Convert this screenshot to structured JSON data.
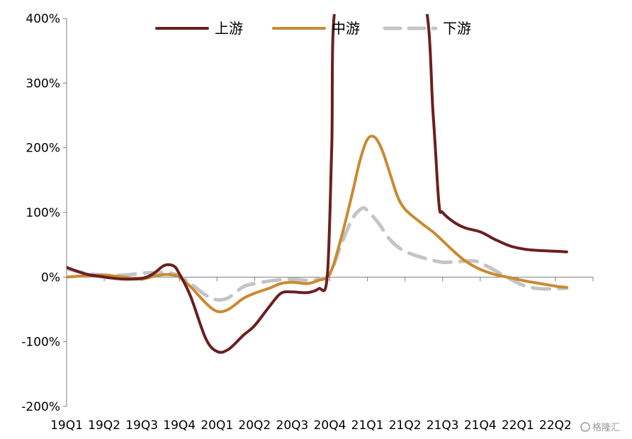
{
  "chart_data": {
    "type": "line",
    "title": "",
    "xlabel": "",
    "ylabel": "",
    "categories": [
      "19Q1",
      "19Q2",
      "19Q3",
      "19Q4",
      "20Q1",
      "20Q2",
      "20Q3",
      "20Q4",
      "21Q1",
      "21Q2",
      "21Q3",
      "21Q4",
      "22Q1",
      "22Q2"
    ],
    "ylim": [
      -200,
      400
    ],
    "yticks": [
      -200,
      -100,
      0,
      100,
      200,
      300,
      400
    ],
    "ytick_labels": [
      "-200%",
      "-100%",
      "0%",
      "100%",
      "200%",
      "300%",
      "400%"
    ],
    "legend_position": "top",
    "grid": false,
    "series": [
      {
        "name": "上游",
        "color": "#6b1f1f",
        "dash": "solid",
        "points": [
          [
            0,
            15
          ],
          [
            0.5,
            5
          ],
          [
            1,
            0
          ],
          [
            1.5,
            -3
          ],
          [
            2,
            -2
          ],
          [
            2.3,
            5
          ],
          [
            2.6,
            18
          ],
          [
            2.85,
            17
          ],
          [
            3,
            5
          ],
          [
            3.3,
            -30
          ],
          [
            3.7,
            -95
          ],
          [
            4,
            -115
          ],
          [
            4.3,
            -112
          ],
          [
            4.7,
            -90
          ],
          [
            5,
            -75
          ],
          [
            5.4,
            -45
          ],
          [
            5.7,
            -25
          ],
          [
            6,
            -23
          ],
          [
            6.4,
            -24
          ],
          [
            6.7,
            -18
          ],
          [
            6.93,
            0
          ],
          [
            7.05,
            200
          ],
          [
            7.15,
            420
          ],
          [
            7.8,
            440
          ],
          [
            8.6,
            440
          ],
          [
            9.5,
            430
          ],
          [
            9.75,
            250
          ],
          [
            9.9,
            115
          ],
          [
            10,
            100
          ],
          [
            10.3,
            85
          ],
          [
            10.6,
            76
          ],
          [
            11,
            70
          ],
          [
            11.4,
            58
          ],
          [
            11.8,
            48
          ],
          [
            12.2,
            43
          ],
          [
            12.6,
            41
          ],
          [
            13,
            40
          ],
          [
            13.3,
            39
          ]
        ]
      },
      {
        "name": "中游",
        "color": "#c98a30",
        "dash": "solid",
        "points": [
          [
            0,
            0
          ],
          [
            0.5,
            2
          ],
          [
            1,
            3
          ],
          [
            1.5,
            0
          ],
          [
            2,
            -3
          ],
          [
            2.3,
            1
          ],
          [
            2.6,
            4
          ],
          [
            2.85,
            3
          ],
          [
            3,
            0
          ],
          [
            3.3,
            -15
          ],
          [
            3.7,
            -40
          ],
          [
            4,
            -53
          ],
          [
            4.3,
            -50
          ],
          [
            4.7,
            -33
          ],
          [
            5,
            -25
          ],
          [
            5.4,
            -17
          ],
          [
            5.7,
            -10
          ],
          [
            6,
            -8
          ],
          [
            6.4,
            -10
          ],
          [
            6.7,
            -5
          ],
          [
            7,
            5
          ],
          [
            7.3,
            60
          ],
          [
            7.6,
            130
          ],
          [
            7.8,
            180
          ],
          [
            8,
            213
          ],
          [
            8.2,
            216
          ],
          [
            8.4,
            195
          ],
          [
            8.6,
            160
          ],
          [
            8.8,
            125
          ],
          [
            9,
            105
          ],
          [
            9.4,
            85
          ],
          [
            9.8,
            67
          ],
          [
            10.2,
            45
          ],
          [
            10.6,
            25
          ],
          [
            11,
            12
          ],
          [
            11.4,
            4
          ],
          [
            11.8,
            -1
          ],
          [
            12.2,
            -6
          ],
          [
            12.6,
            -10
          ],
          [
            13,
            -14
          ],
          [
            13.3,
            -16
          ]
        ]
      },
      {
        "name": "下游",
        "color": "#c4c4c4",
        "dash": "dashed",
        "points": [
          [
            0,
            13
          ],
          [
            0.5,
            6
          ],
          [
            1,
            3
          ],
          [
            1.5,
            3
          ],
          [
            2,
            6
          ],
          [
            2.3,
            7
          ],
          [
            2.6,
            7
          ],
          [
            2.85,
            5
          ],
          [
            3,
            2
          ],
          [
            3.3,
            -10
          ],
          [
            3.7,
            -28
          ],
          [
            4,
            -35
          ],
          [
            4.3,
            -32
          ],
          [
            4.7,
            -15
          ],
          [
            5,
            -10
          ],
          [
            5.4,
            -6
          ],
          [
            5.7,
            -4
          ],
          [
            6,
            -3
          ],
          [
            6.4,
            -5
          ],
          [
            6.7,
            -3
          ],
          [
            7,
            5
          ],
          [
            7.3,
            50
          ],
          [
            7.6,
            90
          ],
          [
            7.85,
            106
          ],
          [
            8,
            103
          ],
          [
            8.3,
            83
          ],
          [
            8.6,
            58
          ],
          [
            8.9,
            43
          ],
          [
            9.2,
            35
          ],
          [
            9.6,
            28
          ],
          [
            10,
            23
          ],
          [
            10.4,
            24
          ],
          [
            10.8,
            25
          ],
          [
            11,
            22
          ],
          [
            11.4,
            10
          ],
          [
            11.8,
            -3
          ],
          [
            12.2,
            -14
          ],
          [
            12.6,
            -18
          ],
          [
            13,
            -18
          ],
          [
            13.3,
            -17
          ]
        ]
      }
    ]
  },
  "watermark_text": "格隆汇"
}
